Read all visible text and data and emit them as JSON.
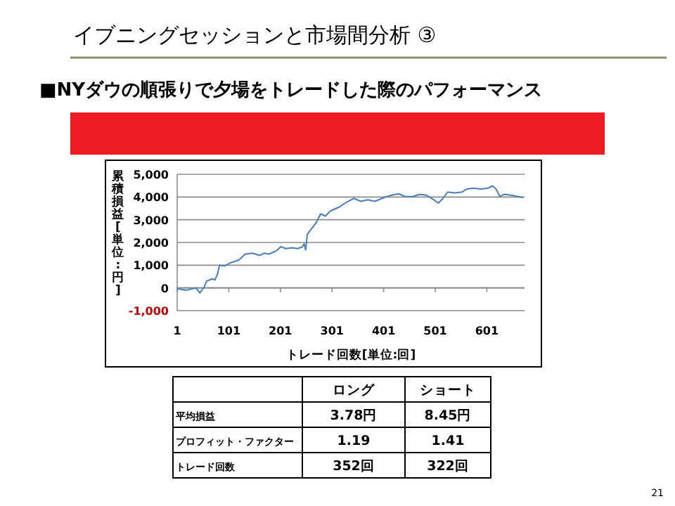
{
  "chart_data": [
    {
      "type": "line",
      "title": "イブニングセッションと市場間分析 ③",
      "subtitle": "■NYダウの順張りで夕場をトレードした際のパフォーマンス",
      "xlabel": "トレード回数[単位:回]",
      "ylabel": "累積損益[単位:円]",
      "x": [
        1,
        19,
        37,
        45,
        54,
        58,
        69,
        74,
        79,
        83,
        92,
        106,
        120,
        133,
        147,
        161,
        170,
        179,
        193,
        202,
        211,
        224,
        234,
        243,
        247,
        250,
        253,
        261,
        270,
        279,
        288,
        297,
        306,
        316,
        329,
        343,
        357,
        370,
        384,
        402,
        416,
        430,
        443,
        457,
        471,
        484,
        498,
        507,
        516,
        525,
        539,
        553,
        562,
        575,
        589,
        603,
        612,
        619,
        626,
        635,
        648,
        662,
        671
      ],
      "series": [
        {
          "color": "#4a7ebb",
          "values": [
            -40,
            -100,
            0,
            -220,
            60,
            300,
            400,
            350,
            600,
            1000,
            960,
            1120,
            1220,
            1490,
            1530,
            1430,
            1530,
            1490,
            1630,
            1820,
            1730,
            1770,
            1730,
            1800,
            1940,
            1670,
            2350,
            2590,
            2860,
            3260,
            3160,
            3370,
            3470,
            3570,
            3770,
            3940,
            3810,
            3880,
            3810,
            3980,
            4080,
            4140,
            4020,
            4020,
            4120,
            4080,
            3880,
            3730,
            3940,
            4220,
            4180,
            4220,
            4350,
            4390,
            4350,
            4390,
            4490,
            4350,
            4020,
            4120,
            4080,
            4020,
            3980
          ]
        }
      ],
      "xlim": [
        1,
        674
      ],
      "xticks": [
        1,
        101,
        201,
        301,
        401,
        501,
        601
      ],
      "ylim": [
        -1000,
        5000
      ],
      "yticks": [
        {
          "value": -1000,
          "label": "-1,000"
        },
        0,
        {
          "value": 1000,
          "label": "1,000"
        },
        {
          "value": 2000,
          "label": "2,000"
        },
        {
          "value": 3000,
          "label": "3,000"
        },
        {
          "value": 4000,
          "label": "4,000"
        },
        {
          "value": 5000,
          "label": "5,000"
        }
      ],
      "grid": "y",
      "marker": "none",
      "line_style": "solid"
    },
    {
      "type": "other",
      "annotations": [
        "ロング",
        "ショート",
        "平均損益",
        "3.78円",
        "8.45円",
        "プロフィット・ファクター",
        "1.19",
        "1.41",
        "トレード回数",
        "352回",
        "322回",
        "21"
      ]
    }
  ]
}
